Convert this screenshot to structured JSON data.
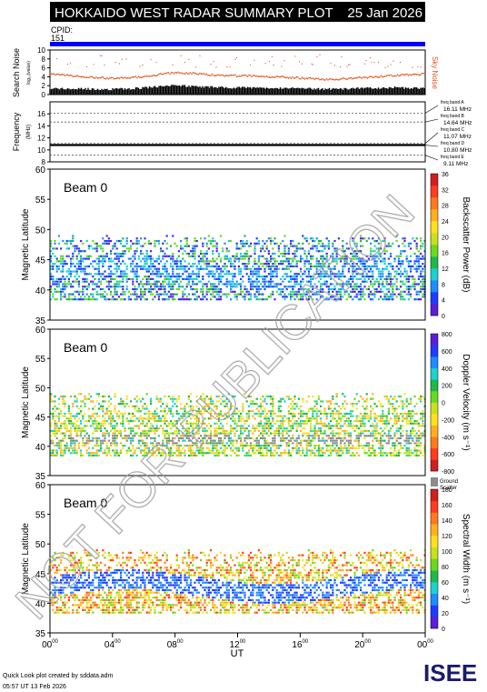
{
  "header": {
    "title": "HOKKAIDO WEST RADAR SUMMARY PLOT",
    "date": "25 Jan 2026",
    "cpid_label": "CPID:",
    "cpid_value": "151",
    "bar_color": "#0000ff"
  },
  "watermark": "NOT FOR PUBLICATION",
  "footer": {
    "credit_line1": "Quick Look plot created by sddata.adm",
    "credit_line2": "05:57 UT 13 Feb 2026",
    "logo_text": "ISEE",
    "logo_colors": [
      "#1a1a6e",
      "#2aa9c8",
      "#3cb44b",
      "#1a1a6e"
    ]
  },
  "time_axis": {
    "label": "UT",
    "ticks": [
      {
        "hh": "00",
        "mm": "00"
      },
      {
        "hh": "04",
        "mm": "00"
      },
      {
        "hh": "08",
        "mm": "00"
      },
      {
        "hh": "12",
        "mm": "00"
      },
      {
        "hh": "16",
        "mm": "00"
      },
      {
        "hh": "20",
        "mm": "00"
      },
      {
        "hh": "00",
        "mm": "00"
      }
    ]
  },
  "chart_data": [
    {
      "type": "area",
      "name": "search-noise",
      "ylabel": "Search Noise",
      "ylabel_sub": "log₁₀(value)",
      "legend": "Sky Noise",
      "legend_color": "#e0501a",
      "ylim": [
        0,
        10
      ],
      "yticks": [
        "0",
        "2",
        "4",
        "6",
        "8",
        "10"
      ],
      "x_hours": [
        0,
        1,
        2,
        3,
        4,
        5,
        6,
        7,
        8,
        9,
        10,
        11,
        12,
        13,
        14,
        15,
        16,
        17,
        18,
        19,
        20,
        21,
        22,
        23,
        24
      ],
      "sky_noise": [
        4.6,
        4.3,
        4.0,
        3.8,
        3.6,
        3.7,
        4.1,
        4.5,
        4.9,
        4.8,
        4.5,
        4.3,
        4.2,
        4.2,
        4.0,
        3.9,
        3.7,
        3.5,
        3.4,
        3.6,
        3.8,
        4.0,
        4.3,
        4.5,
        4.6
      ],
      "search_noise": [
        1.4,
        1.3,
        1.3,
        1.2,
        1.2,
        1.3,
        1.5,
        1.8,
        2.0,
        1.9,
        1.7,
        1.6,
        1.6,
        1.5,
        1.5,
        1.4,
        1.4,
        1.3,
        1.2,
        1.3,
        1.4,
        1.5,
        1.6,
        1.5,
        1.4
      ]
    },
    {
      "type": "line",
      "name": "frequency",
      "ylabel": "Frequency",
      "ylabel_sub": "(MHz)",
      "ylim": [
        8,
        18
      ],
      "yticks": [
        "8",
        "10",
        "12",
        "14",
        "16"
      ],
      "frequency_mhz": 10.8,
      "bands": [
        {
          "label": "freq band A",
          "value": "16.11 MHz",
          "mhz": 16.11
        },
        {
          "label": "freq band B",
          "value": "14.64 MHz",
          "mhz": 14.64
        },
        {
          "label": "freq band C",
          "value": "11.07 MHz",
          "mhz": 11.07
        },
        {
          "label": "freq band D",
          "value": "10.80 MHz",
          "mhz": 10.8
        },
        {
          "label": "freq band E",
          "value": "9.11 MHz",
          "mhz": 9.11
        }
      ]
    },
    {
      "type": "heatmap",
      "name": "backscatter-power",
      "beam_label": "Beam  0",
      "ylabel": "Magnetic Latitude",
      "ylim": [
        35,
        60
      ],
      "yticks": [
        "35",
        "40",
        "45",
        "50",
        "55",
        "60"
      ],
      "colorbar_label": "Backscatter Power (dB)",
      "colorbar_ticks": [
        "0",
        "4",
        "8",
        "12",
        "16",
        "20",
        "24",
        "28",
        "32",
        "36"
      ],
      "colorbar_colors": [
        "#5b1fd8",
        "#1f3cff",
        "#1f8cff",
        "#1fd0d0",
        "#1fb84a",
        "#6cd81f",
        "#c8e01f",
        "#ffe01f",
        "#ffb01f",
        "#ff7a1f",
        "#ff3c1f",
        "#d01f1f"
      ],
      "bands": [
        {
          "t0": 0,
          "t1": 24,
          "lat0": 38.5,
          "lat1": 49,
          "scheme": "power"
        }
      ]
    },
    {
      "type": "heatmap",
      "name": "doppler-velocity",
      "beam_label": "Beam  0",
      "ylabel": "Magnetic Latitude",
      "ylim": [
        35,
        60
      ],
      "yticks": [
        "35",
        "40",
        "45",
        "50",
        "55",
        "60"
      ],
      "colorbar_label": "Doppler Velocity (m s⁻¹)",
      "colorbar_ticks": [
        "-800",
        "-600",
        "-400",
        "-200",
        "0",
        "200",
        "400",
        "600",
        "800"
      ],
      "colorbar_colors": [
        "#d01f1f",
        "#ff3c1f",
        "#ff7a1f",
        "#ffb01f",
        "#ffe01f",
        "#c8e01f",
        "#6cd81f",
        "#1fb84a",
        "#1fd0d0",
        "#1f8cff",
        "#1f3cff",
        "#5b1fd8"
      ],
      "ground_scatter_label": "Ground Scatter",
      "ground_scatter_color": "#8c8c8c"
    },
    {
      "type": "heatmap",
      "name": "spectral-width",
      "beam_label": "Beam  0",
      "ylabel": "Magnetic Latitude",
      "ylim": [
        35,
        60
      ],
      "yticks": [
        "35",
        "40",
        "45",
        "50",
        "55",
        "60"
      ],
      "colorbar_label": "Spectral Width (m s⁻¹)",
      "colorbar_ticks": [
        "0",
        "20",
        "40",
        "60",
        "80",
        "100",
        "120",
        "140",
        "160",
        "180"
      ],
      "colorbar_colors": [
        "#5b1fd8",
        "#1f3cff",
        "#1f8cff",
        "#1fd0d0",
        "#1fb84a",
        "#6cd81f",
        "#c8e01f",
        "#ffe01f",
        "#ffb01f",
        "#ff7a1f",
        "#ff3c1f",
        "#d01f1f"
      ]
    }
  ]
}
